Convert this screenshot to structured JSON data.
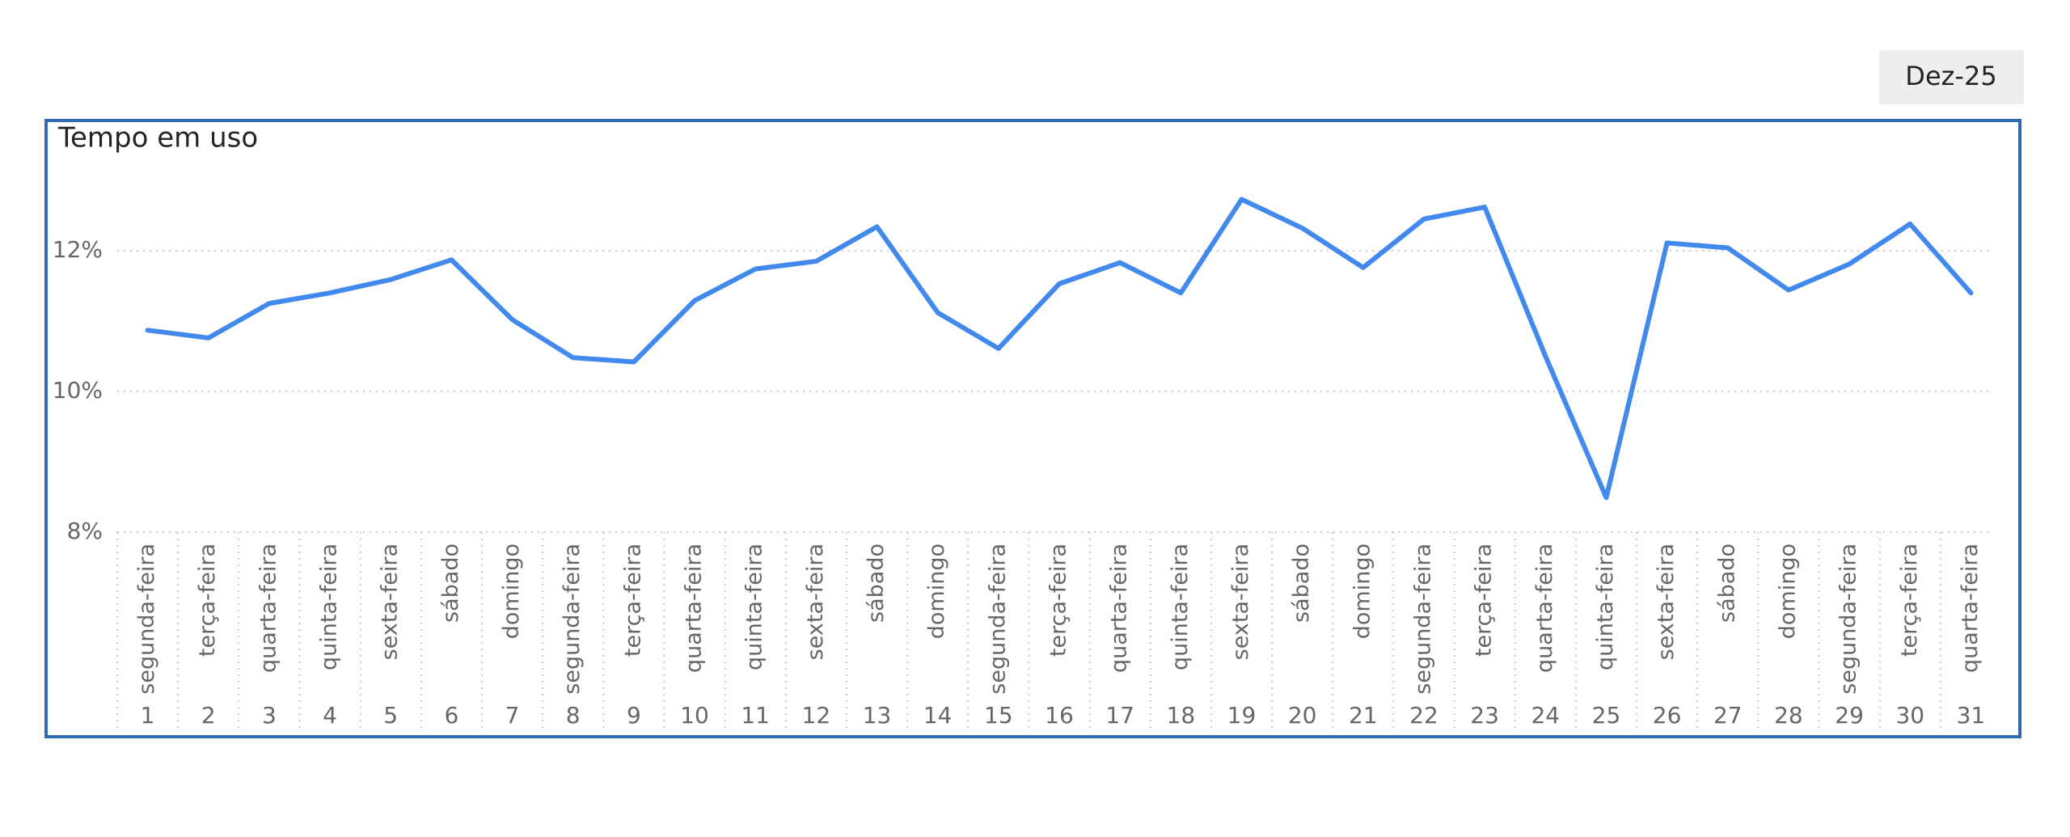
{
  "header": {
    "period": "Dez-25"
  },
  "chart_data": {
    "type": "line",
    "title": "Tempo em uso",
    "categories": [
      "1",
      "2",
      "3",
      "4",
      "5",
      "6",
      "7",
      "8",
      "9",
      "10",
      "11",
      "12",
      "13",
      "14",
      "15",
      "16",
      "17",
      "18",
      "19",
      "20",
      "21",
      "22",
      "23",
      "24",
      "25",
      "26",
      "27",
      "28",
      "29",
      "30",
      "31"
    ],
    "weekdays": [
      "segunda-feira",
      "terça-feira",
      "quarta-feira",
      "quinta-feira",
      "sexta-feira",
      "sábado",
      "domingo",
      "segunda-feira",
      "terça-feira",
      "quarta-feira",
      "quinta-feira",
      "sexta-feira",
      "sábado",
      "domingo",
      "segunda-feira",
      "terça-feira",
      "quarta-feira",
      "quinta-feira",
      "sexta-feira",
      "sábado",
      "domingo",
      "segunda-feira",
      "terça-feira",
      "quarta-feira",
      "quinta-feira",
      "sexta-feira",
      "sábado",
      "domingo",
      "segunda-feira",
      "terça-feira",
      "quarta-feira"
    ],
    "values": [
      10.87,
      10.76,
      11.25,
      11.4,
      11.59,
      11.87,
      11.02,
      10.48,
      10.42,
      11.29,
      11.74,
      11.85,
      12.34,
      11.12,
      10.61,
      11.53,
      11.83,
      11.4,
      12.73,
      12.32,
      11.76,
      12.45,
      12.62,
      10.5,
      8.49,
      12.11,
      12.04,
      11.44,
      11.81,
      12.38,
      11.4
    ],
    "color": "#4189ec",
    "ylim": [
      8,
      13
    ],
    "yticks": [
      {
        "value": 8,
        "label": "8%"
      },
      {
        "value": 10,
        "label": "10%"
      },
      {
        "value": 12,
        "label": "12%"
      }
    ],
    "grid": true
  }
}
